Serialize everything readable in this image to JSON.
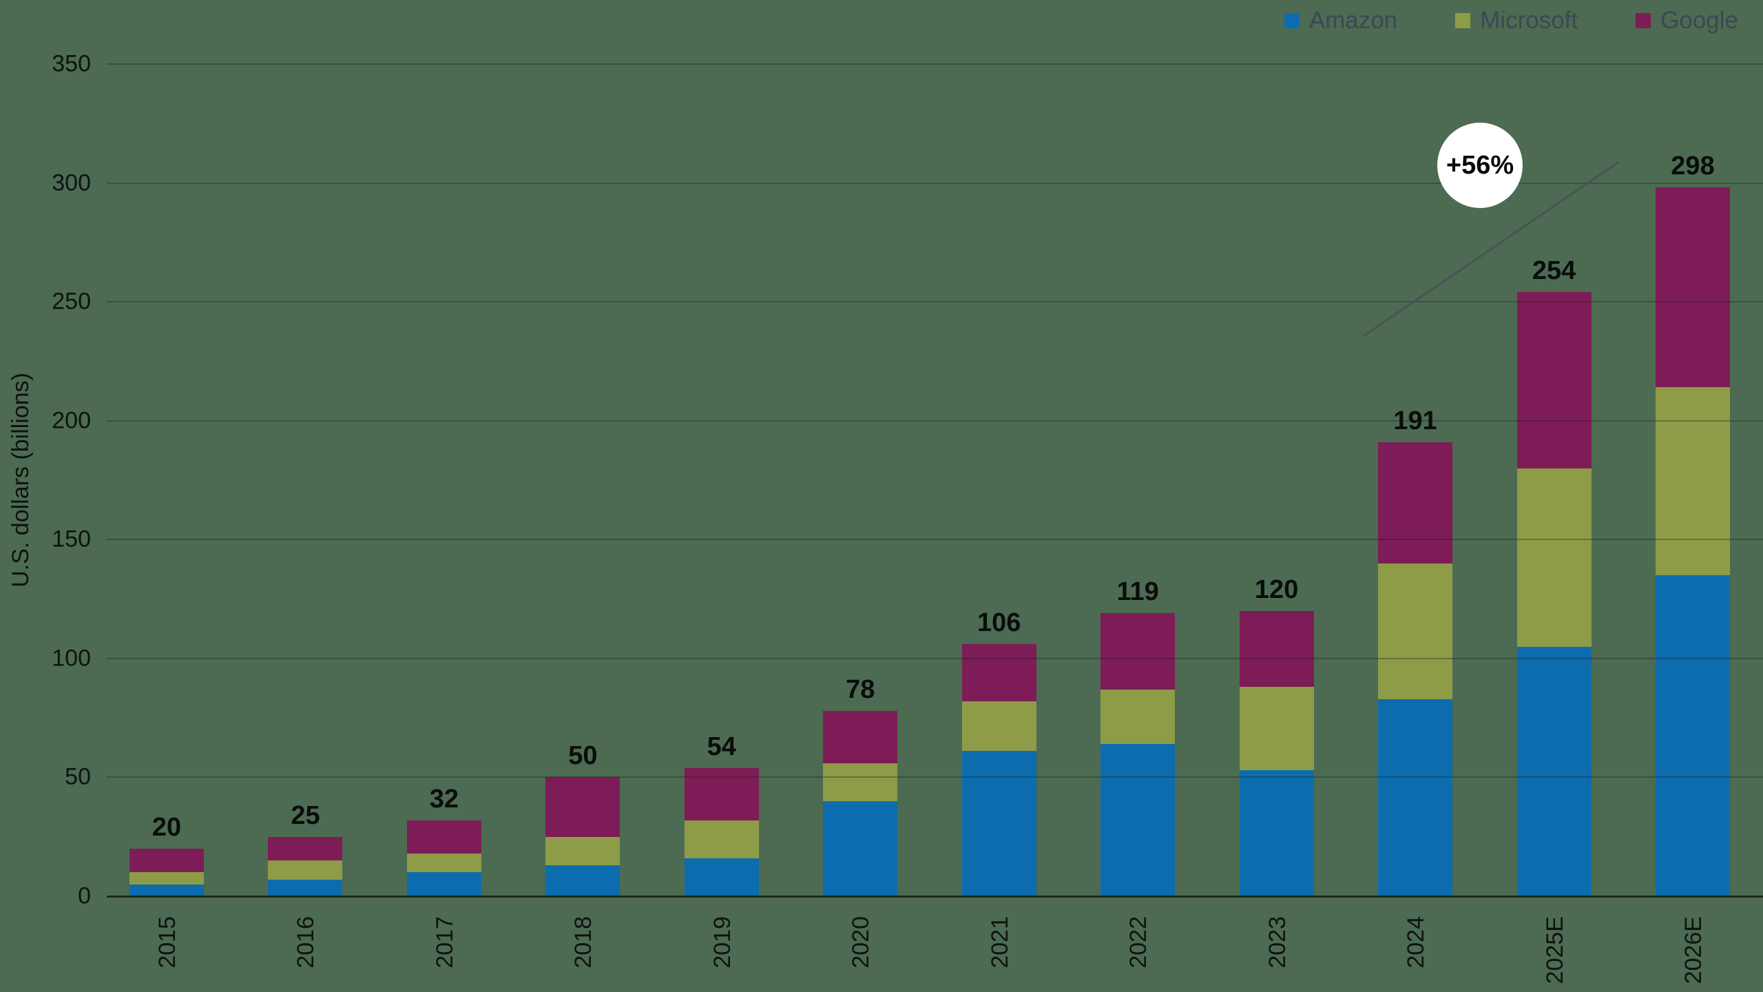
{
  "background_color": "#4C6B52",
  "chart_data": {
    "type": "bar",
    "stacked": true,
    "title": "",
    "xlabel": "",
    "ylabel": "U.S. dollars (billions)",
    "ylim": [
      0,
      350
    ],
    "yticks": [
      0,
      50,
      100,
      150,
      200,
      250,
      300,
      350
    ],
    "grid": true,
    "legend_position": "top-right",
    "categories": [
      "2015",
      "2016",
      "2017",
      "2018",
      "2019",
      "2020",
      "2021",
      "2022",
      "2023",
      "2024",
      "2025E",
      "2026E"
    ],
    "series": [
      {
        "name": "Amazon",
        "color": "#0D6CAD",
        "values": [
          5,
          7,
          10,
          13,
          16,
          40,
          61,
          64,
          53,
          83,
          105,
          135
        ]
      },
      {
        "name": "Microsoft",
        "color": "#8E9C47",
        "values": [
          5,
          8,
          8,
          12,
          16,
          16,
          21,
          23,
          35,
          57,
          75,
          79
        ]
      },
      {
        "name": "Google",
        "color": "#7E1C57",
        "values": [
          10,
          10,
          14,
          25,
          22,
          22,
          24,
          32,
          32,
          51,
          74,
          84
        ]
      }
    ],
    "totals": [
      20,
      25,
      32,
      50,
      54,
      78,
      106,
      119,
      120,
      191,
      254,
      298
    ],
    "annotation": {
      "text": "+56%",
      "from_category": "2024",
      "to_category": "2026E"
    }
  }
}
